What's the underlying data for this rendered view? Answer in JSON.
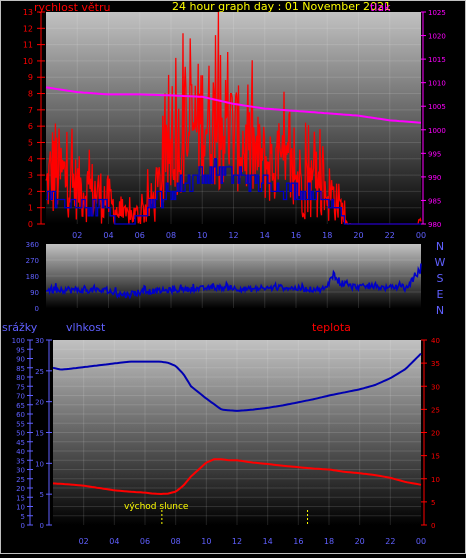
{
  "title": "24 hour graph day : 01 November 2021",
  "colors": {
    "background": "#000000",
    "frame": "#c0c0c0",
    "axis_text": "#6060ff",
    "wind": "#ff0000",
    "pressure": "#ff00ff",
    "direction": "#0000c0",
    "humidity": "#0000b0",
    "temperature": "#ff0000",
    "title": "#ffff00",
    "sunrise": "#ffff00"
  },
  "x_ticks": [
    "02",
    "04",
    "06",
    "08",
    "10",
    "12",
    "14",
    "16",
    "18",
    "20",
    "22",
    "00"
  ],
  "chart_data": [
    {
      "id": "wind-pressure",
      "type": "line",
      "title": "24 hour graph day : 01 November 2021",
      "left_axis_label": "rychlost větru",
      "right_axis_label": "tlak",
      "xlabel": "",
      "xlim": [
        0,
        24
      ],
      "left_ylim": [
        0,
        13
      ],
      "left_ticks": [
        "0",
        "1",
        "2",
        "3",
        "4",
        "5",
        "6",
        "7",
        "8",
        "9",
        "10",
        "11",
        "12",
        "13"
      ],
      "right_ylim": [
        980,
        1025
      ],
      "right_ticks": [
        "980",
        "985",
        "990",
        "995",
        "1000",
        "1005",
        "1010",
        "1015",
        "1020",
        "1025"
      ],
      "grid": true,
      "series": [
        {
          "name": "rychlost větru",
          "axis": "left",
          "kind": "noisy",
          "color": "#ff0000",
          "x": [
            0,
            0.5,
            1,
            2,
            3,
            4,
            4.5,
            5,
            6,
            7,
            8,
            9,
            10,
            11,
            12,
            13,
            14,
            15,
            16,
            17,
            18,
            18.6,
            19,
            19.2,
            19.5,
            20,
            22,
            23.8,
            24
          ],
          "base": [
            2.2,
            3.5,
            3.0,
            2.2,
            2.0,
            1.5,
            0.8,
            0.5,
            0.6,
            1.5,
            4.5,
            5.5,
            6.5,
            6.0,
            5.5,
            4.5,
            3.8,
            3.3,
            2.8,
            2.4,
            2.0,
            1.6,
            0.6,
            0.1,
            0,
            0,
            0,
            0,
            0.4
          ],
          "amp": [
            1.5,
            3.5,
            2.5,
            2.0,
            2.0,
            1.5,
            1.0,
            0.6,
            0.8,
            1.5,
            3.0,
            3.5,
            4.0,
            4.0,
            3.5,
            3.0,
            2.5,
            2.5,
            2.5,
            2.2,
            2.0,
            1.5,
            1.0,
            0.3,
            0,
            0,
            0,
            0,
            0.9
          ]
        },
        {
          "name": "wind-average",
          "axis": "left",
          "kind": "step",
          "color": "#0000c8",
          "x": [
            0,
            0.5,
            1,
            2,
            3,
            4,
            4.3,
            5,
            5.5,
            6,
            7,
            8,
            9,
            10,
            11,
            12,
            13,
            14,
            15,
            16,
            17,
            18,
            18.6,
            19.2,
            20,
            24
          ],
          "base": [
            2.0,
            1.7,
            1.3,
            1.2,
            1.0,
            1.0,
            0.2,
            0,
            0,
            0.7,
            1.5,
            2.0,
            2.5,
            3.0,
            3.2,
            3.0,
            2.8,
            2.5,
            2.2,
            2.0,
            1.8,
            1.5,
            1.2,
            0,
            0,
            0
          ],
          "amp": [
            0.4,
            0.5,
            0.5,
            0.5,
            0.5,
            0.4,
            0.2,
            0,
            0,
            0.3,
            0.5,
            0.6,
            0.6,
            0.7,
            0.7,
            0.7,
            0.6,
            0.6,
            0.5,
            0.5,
            0.5,
            0.4,
            0.3,
            0,
            0,
            0
          ]
        },
        {
          "name": "tlak",
          "axis": "right",
          "kind": "line",
          "color": "#ff00ff",
          "x": [
            0,
            1,
            2,
            4,
            6,
            8,
            10,
            12,
            14,
            16,
            18,
            20,
            22,
            24
          ],
          "base": [
            1009,
            1008.5,
            1008,
            1007.5,
            1007.5,
            1007.3,
            1007,
            1005.5,
            1004.5,
            1004,
            1003.5,
            1003,
            1002,
            1001.5
          ]
        }
      ]
    },
    {
      "id": "wind-direction",
      "type": "line",
      "right_axis_label": "N W S E N",
      "right_letters": [
        "N",
        "W",
        "S",
        "E",
        "N"
      ],
      "xlim": [
        0,
        24
      ],
      "ylim": [
        0,
        360
      ],
      "left_ticks": [
        "0",
        "90",
        "180",
        "270",
        "360"
      ],
      "grid": true,
      "series": [
        {
          "name": "direction",
          "kind": "noisy",
          "color": "#0000c8",
          "x": [
            0,
            1,
            2,
            3,
            4,
            4.5,
            5,
            5.5,
            6,
            7,
            8,
            9,
            10,
            11,
            12,
            13,
            14,
            15,
            16,
            17,
            17.5,
            18,
            18.3,
            18.7,
            19,
            19.5,
            20,
            21,
            22,
            22.5,
            23,
            23.5,
            24
          ],
          "base": [
            100,
            105,
            100,
            100,
            95,
            80,
            75,
            80,
            90,
            95,
            100,
            105,
            110,
            115,
            110,
            105,
            110,
            115,
            110,
            105,
            105,
            110,
            200,
            150,
            140,
            120,
            120,
            120,
            110,
            120,
            100,
            170,
            215
          ],
          "amp": [
            20,
            20,
            20,
            15,
            20,
            20,
            20,
            20,
            20,
            15,
            15,
            15,
            15,
            15,
            15,
            15,
            15,
            15,
            15,
            15,
            15,
            20,
            30,
            30,
            20,
            20,
            15,
            15,
            15,
            15,
            15,
            25,
            20
          ]
        }
      ]
    },
    {
      "id": "humidity-temperature",
      "type": "line",
      "labels": [
        "srážky",
        "vlhkost",
        "teplota"
      ],
      "xlim": [
        0,
        24
      ],
      "rain_ylim": [
        0,
        100
      ],
      "rain_ticks": [
        "0",
        "5",
        "10",
        "15",
        "20",
        "25",
        "30",
        "35",
        "40",
        "45",
        "50",
        "55",
        "60",
        "65",
        "70",
        "75",
        "80",
        "85",
        "90",
        "95",
        "100"
      ],
      "humidity_ylim": [
        0,
        30
      ],
      "humidity_ticks": [
        "0",
        "5",
        "10",
        "15",
        "20",
        "25",
        "30"
      ],
      "temperature_ylim": [
        0,
        40
      ],
      "temperature_ticks": [
        "0",
        "5",
        "10",
        "15",
        "20",
        "25",
        "30",
        "35",
        "40"
      ],
      "grid": true,
      "series": [
        {
          "name": "vlhkost",
          "axis": "humidity",
          "kind": "line",
          "color": "#0000b0",
          "x": [
            0,
            0.5,
            1,
            2,
            3,
            4,
            5,
            6,
            7,
            7.5,
            8,
            8.5,
            9,
            9.5,
            10,
            11,
            12,
            13,
            14,
            15,
            16,
            17,
            18,
            19,
            20,
            21,
            22,
            23,
            24
          ],
          "base": [
            25.5,
            25.2,
            25.3,
            25.6,
            25.9,
            26.2,
            26.5,
            26.5,
            26.5,
            26.3,
            25.8,
            24.5,
            22.5,
            21.5,
            20.5,
            18.7,
            18.5,
            18.7,
            19.0,
            19.4,
            19.9,
            20.4,
            21.0,
            21.5,
            22.0,
            22.7,
            23.8,
            25.3,
            27.8
          ]
        },
        {
          "name": "teplota",
          "axis": "temperature",
          "kind": "line",
          "color": "#ff0000",
          "x": [
            0,
            1,
            2,
            3,
            4,
            5,
            6,
            6.5,
            7,
            7.5,
            8,
            8.5,
            9,
            9.5,
            10,
            10.5,
            11,
            11.5,
            12,
            13,
            14,
            15,
            16,
            17,
            18,
            19,
            20,
            21,
            22,
            23,
            24
          ],
          "base": [
            9,
            8.8,
            8.5,
            8.0,
            7.5,
            7.2,
            7.0,
            6.8,
            6.7,
            6.8,
            7.2,
            8.5,
            10.5,
            12.0,
            13.5,
            14.2,
            14.2,
            14.0,
            14.0,
            13.5,
            13.2,
            12.8,
            12.5,
            12.2,
            12.0,
            11.5,
            11.2,
            10.8,
            10.2,
            9.3,
            8.7
          ]
        }
      ],
      "sunrise_label": "východ slunce",
      "markers": [
        {
          "name": "sunrise",
          "x": 7.1
        },
        {
          "name": "sunset",
          "x": 16.6
        }
      ]
    }
  ]
}
